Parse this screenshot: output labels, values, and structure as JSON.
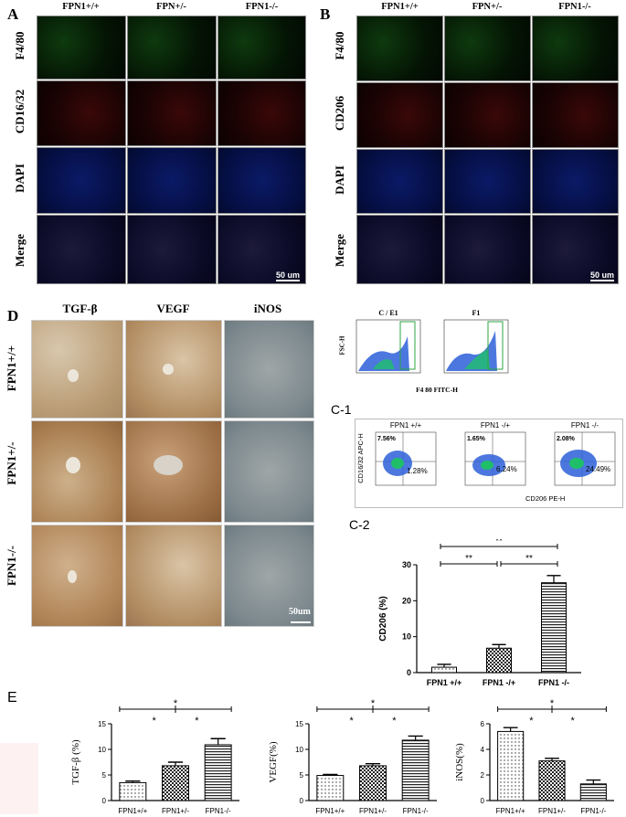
{
  "panel_a": {
    "label": "A",
    "columns": [
      "FPN1+/+",
      "FPN+/-",
      "FPN1-/-"
    ],
    "rows": [
      "F4/80",
      "CD16/32",
      "DAPI",
      "Merge"
    ],
    "scale": "50 um"
  },
  "panel_b": {
    "label": "B",
    "columns": [
      "FPN1+/+",
      "FPN+/-",
      "FPN1-/-"
    ],
    "rows": [
      "F4/80",
      "CD206",
      "DAPI",
      "Merge"
    ],
    "scale": "50 um"
  },
  "panel_d": {
    "label": "D",
    "columns": [
      "TGF-β",
      "VEGF",
      "iNOS"
    ],
    "rows": [
      "FPN1+/+",
      "FPN1+/-",
      "FPN1-/-"
    ],
    "scale": "50um"
  },
  "panel_c": {
    "gate_titles": [
      "C / E1",
      "F1"
    ],
    "gate_y": "FSC-H",
    "gate_x": "F4 80 FITC-H",
    "c1_label": "C-1",
    "c1_titles": [
      "FPN1 +/+",
      "FPN1 -/+",
      "FPN1 -/-"
    ],
    "c1_y": "CD16/32 APC-H",
    "c1_x": "CD206 PE-H",
    "quad_ul": [
      "7.56%",
      "1.65%",
      "2.08%"
    ],
    "quad_lr": [
      "1.28%",
      "6.24%",
      "24.49%"
    ],
    "c2_label": "C-2",
    "c2_ylabel": "CD206  (%)",
    "sig": [
      "**",
      "**",
      "**"
    ]
  },
  "panel_e": {
    "label": "E",
    "sig": "*"
  },
  "chart_data": [
    {
      "type": "bar",
      "title": "C-2",
      "categories": [
        "FPN1 +/+",
        "FPN1 -/+",
        "FPN1 -/-"
      ],
      "values": [
        1.5,
        6.8,
        25
      ],
      "errors": [
        0.8,
        1.0,
        2.0
      ],
      "ylabel": "CD206  (%)",
      "ylim": [
        0,
        30
      ],
      "yticks": [
        0,
        10,
        20,
        30
      ]
    },
    {
      "type": "bar",
      "categories": [
        "FPN1+/+",
        "FPN1+/-",
        "FPN1-/-"
      ],
      "values": [
        3.5,
        6.8,
        10.9
      ],
      "errors": [
        0.3,
        0.7,
        1.2
      ],
      "ylabel": "TGF-β (%)",
      "ylim": [
        0,
        15
      ],
      "yticks": [
        0,
        5,
        10,
        15
      ]
    },
    {
      "type": "bar",
      "categories": [
        "FPN1+/+",
        "FPN1+/-",
        "FPN1-/-"
      ],
      "values": [
        4.9,
        6.8,
        11.8
      ],
      "errors": [
        0.2,
        0.4,
        0.8
      ],
      "ylabel": "VEGF(%)",
      "ylim": [
        0,
        15
      ],
      "yticks": [
        0,
        5,
        10,
        15
      ]
    },
    {
      "type": "bar",
      "categories": [
        "FPN1+/+",
        "FPN1+/-",
        "FPN1-/-"
      ],
      "values": [
        5.4,
        3.1,
        1.3
      ],
      "errors": [
        0.3,
        0.2,
        0.3
      ],
      "ylabel": "iNOS(%)",
      "ylim": [
        0,
        6
      ],
      "yticks": [
        0,
        2,
        4,
        6
      ]
    }
  ]
}
